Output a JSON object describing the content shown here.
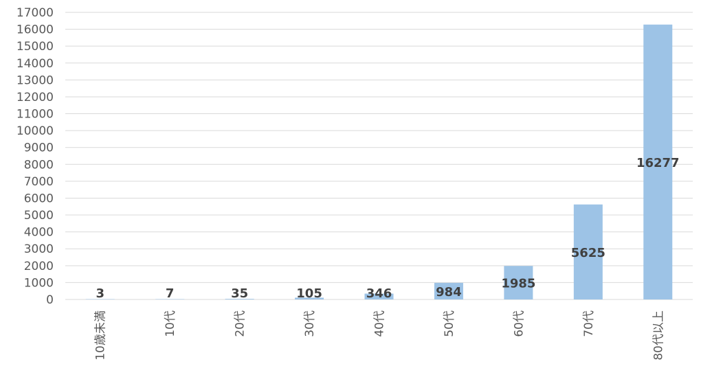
{
  "chart_data": {
    "type": "bar",
    "categories": [
      "10歳未満",
      "10代",
      "20代",
      "30代",
      "40代",
      "50代",
      "60代",
      "70代",
      "80代以上"
    ],
    "values": [
      3,
      7,
      35,
      105,
      346,
      984,
      1985,
      5625,
      16277
    ],
    "data_labels": [
      "3",
      "7",
      "35",
      "105",
      "346",
      "984",
      "1985",
      "5625",
      "16277"
    ],
    "y_ticks": [
      "0",
      "1000",
      "2000",
      "3000",
      "4000",
      "5000",
      "6000",
      "7000",
      "8000",
      "9000",
      "10000",
      "11000",
      "12000",
      "13000",
      "14000",
      "15000",
      "16000",
      "17000"
    ],
    "ylim": [
      0,
      17000
    ],
    "grid": true,
    "bar_color": "#9dc3e6",
    "title": "",
    "xlabel": "",
    "ylabel": ""
  }
}
